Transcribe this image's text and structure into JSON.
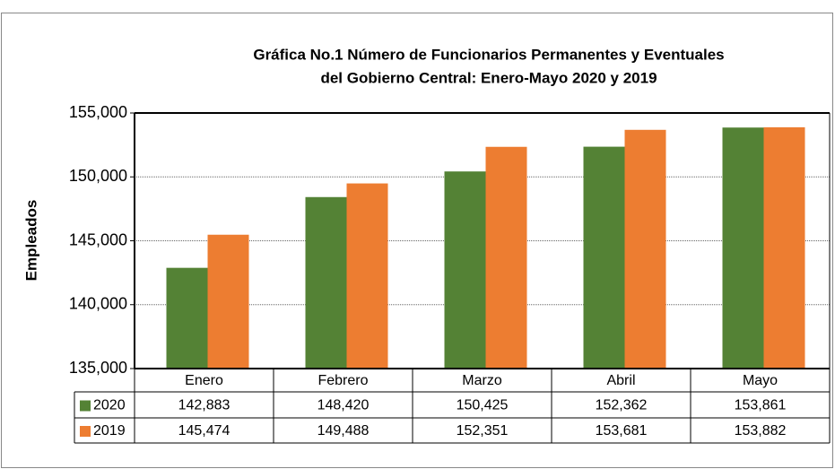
{
  "chart_data": {
    "type": "bar",
    "title": [
      "Gráfica No.1 Número de Funcionarios  Permanentes y Eventuales",
      "del Gobierno Central: Enero-Mayo 2020 y 2019"
    ],
    "ylabel": "Empleados",
    "categories": [
      "Enero",
      "Febrero",
      "Marzo",
      "Abril",
      "Mayo"
    ],
    "series": [
      {
        "name": "2020",
        "color": "#548235",
        "values": [
          142883,
          148420,
          150425,
          152362,
          153861
        ],
        "value_labels": [
          "142,883",
          "148,420",
          "150,425",
          "152,362",
          "153,861"
        ]
      },
      {
        "name": "2019",
        "color": "#ed7d31",
        "values": [
          145474,
          149488,
          152351,
          153681,
          153882
        ],
        "value_labels": [
          "145,474",
          "149,488",
          "152,351",
          "153,681",
          "153,882"
        ]
      }
    ],
    "ylim": [
      135000,
      155000
    ],
    "yticks": [
      {
        "value": 135000,
        "label": "135,000"
      },
      {
        "value": 140000,
        "label": "140,000"
      },
      {
        "value": 145000,
        "label": "145,000"
      },
      {
        "value": 150000,
        "label": "150,000"
      },
      {
        "value": 155000,
        "label": "155,000"
      }
    ],
    "grid": true
  }
}
